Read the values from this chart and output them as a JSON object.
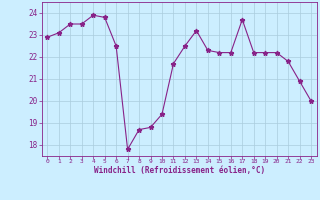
{
  "x": [
    0,
    1,
    2,
    3,
    4,
    5,
    6,
    7,
    8,
    9,
    10,
    11,
    12,
    13,
    14,
    15,
    16,
    17,
    18,
    19,
    20,
    21,
    22,
    23
  ],
  "y": [
    22.9,
    23.1,
    23.5,
    23.5,
    23.9,
    23.8,
    22.5,
    17.8,
    18.7,
    18.8,
    19.4,
    21.7,
    22.5,
    23.2,
    22.3,
    22.2,
    22.2,
    23.7,
    22.2,
    22.2,
    22.2,
    21.8,
    20.9,
    20.0
  ],
  "line_color": "#882288",
  "marker": "*",
  "marker_size": 3.5,
  "bg_color": "#cceeff",
  "grid_color": "#aaccdd",
  "xlabel": "Windchill (Refroidissement éolien,°C)",
  "xlabel_color": "#882288",
  "tick_color": "#882288",
  "label_color": "#882288",
  "ylim": [
    17.5,
    24.5
  ],
  "yticks": [
    18,
    19,
    20,
    21,
    22,
    23,
    24
  ],
  "xlim": [
    -0.5,
    23.5
  ],
  "xticks": [
    0,
    1,
    2,
    3,
    4,
    5,
    6,
    7,
    8,
    9,
    10,
    11,
    12,
    13,
    14,
    15,
    16,
    17,
    18,
    19,
    20,
    21,
    22,
    23
  ]
}
